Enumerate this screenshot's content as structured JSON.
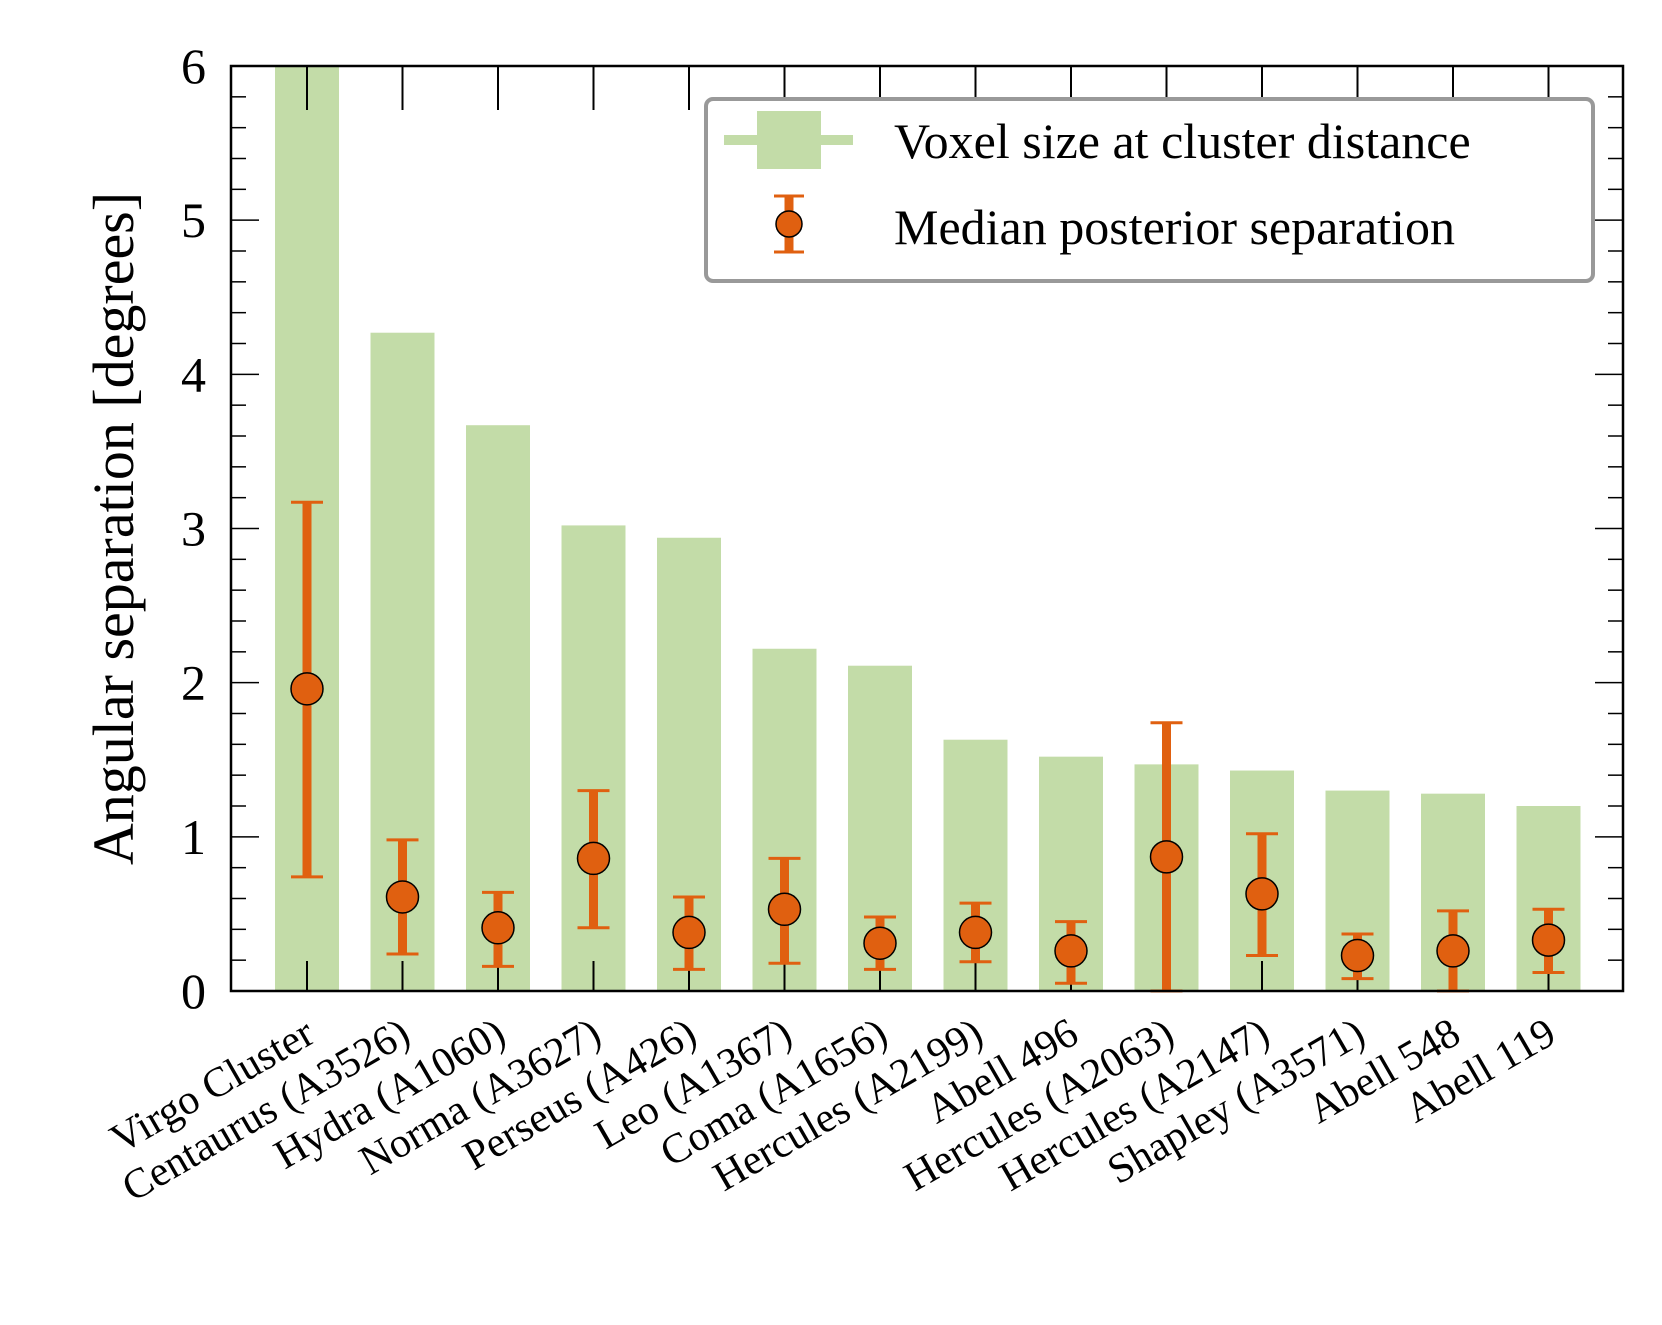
{
  "chart_data": {
    "type": "bar",
    "title": "",
    "xlabel": "",
    "ylabel": "Angular separation [degrees]",
    "ylim": [
      0,
      6
    ],
    "yticks": [
      "0",
      "1",
      "2",
      "3",
      "4",
      "5",
      "6"
    ],
    "grid": false,
    "legend_position": "top-right",
    "categories": [
      "Virgo Cluster",
      "Centaurus (A3526)",
      "Hydra (A1060)",
      "Norma (A3627)",
      "Perseus (A426)",
      "Leo (A1367)",
      "Coma (A1656)",
      "Hercules (A2199)",
      "Abell 496",
      "Hercules (A2063)",
      "Hercules (A2147)",
      "Shapley (A3571)",
      "Abell 548",
      "Abell 119"
    ],
    "series": [
      {
        "name": "Voxel size at cluster distance",
        "kind": "bar",
        "color": "#c3dca8",
        "values": [
          6.0,
          4.27,
          3.67,
          3.02,
          2.94,
          2.22,
          2.11,
          1.63,
          1.52,
          1.47,
          1.43,
          1.3,
          1.28,
          1.2
        ]
      },
      {
        "name": "Median posterior separation",
        "kind": "errorbar",
        "color": "#e06010",
        "values": [
          1.96,
          0.61,
          0.41,
          0.86,
          0.38,
          0.53,
          0.31,
          0.38,
          0.26,
          0.87,
          0.63,
          0.23,
          0.26,
          0.33
        ],
        "lower": [
          0.74,
          0.24,
          0.16,
          0.41,
          0.14,
          0.18,
          0.14,
          0.19,
          0.05,
          0.0,
          0.23,
          0.08,
          0.0,
          0.12
        ],
        "upper": [
          3.17,
          0.98,
          0.64,
          1.3,
          0.61,
          0.86,
          0.48,
          0.57,
          0.45,
          1.74,
          1.02,
          0.37,
          0.52,
          0.53
        ]
      }
    ]
  }
}
